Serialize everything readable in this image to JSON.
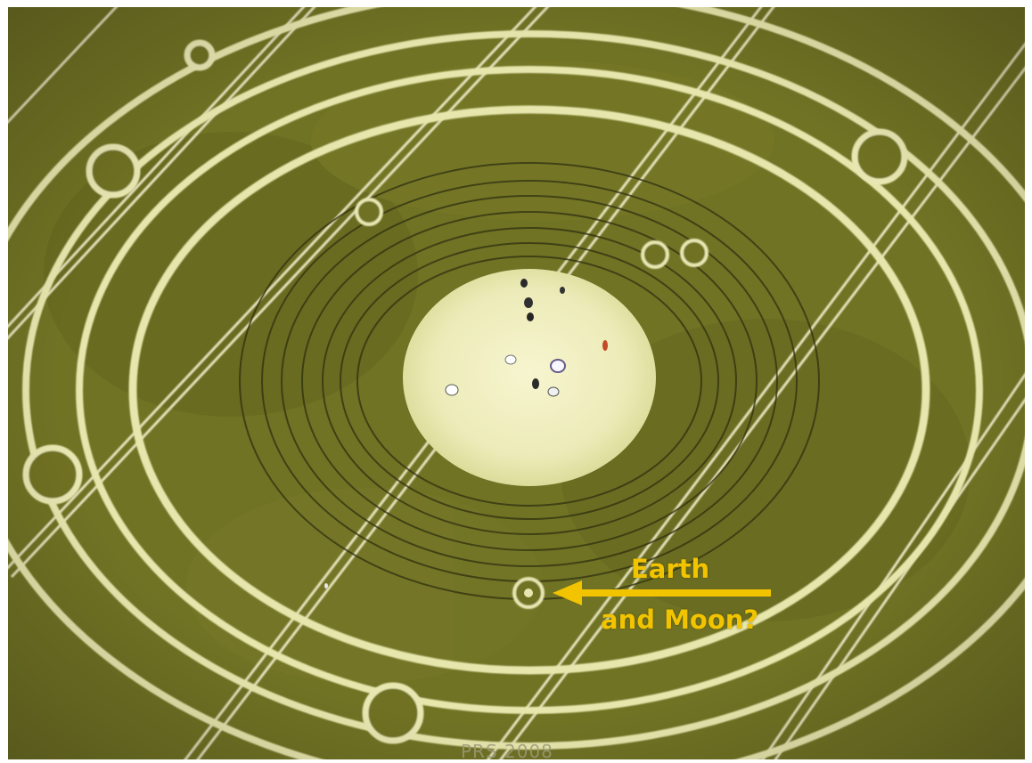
{
  "photo": {
    "subject": "aerial crop circle formation",
    "colors": {
      "crop": "#6f6f23",
      "crop_dark": "#5c5e1c",
      "flattened": "#e6e6a8",
      "center_highlight": "#f5f3c8",
      "tramline": "#f4f0d0",
      "annotation": "#f2c400",
      "credit": "#9a9a78"
    }
  },
  "annotation": {
    "line1": "Earth",
    "line2": "and Moon?",
    "arrow_direction": "left"
  },
  "credit": "PRS 2008"
}
